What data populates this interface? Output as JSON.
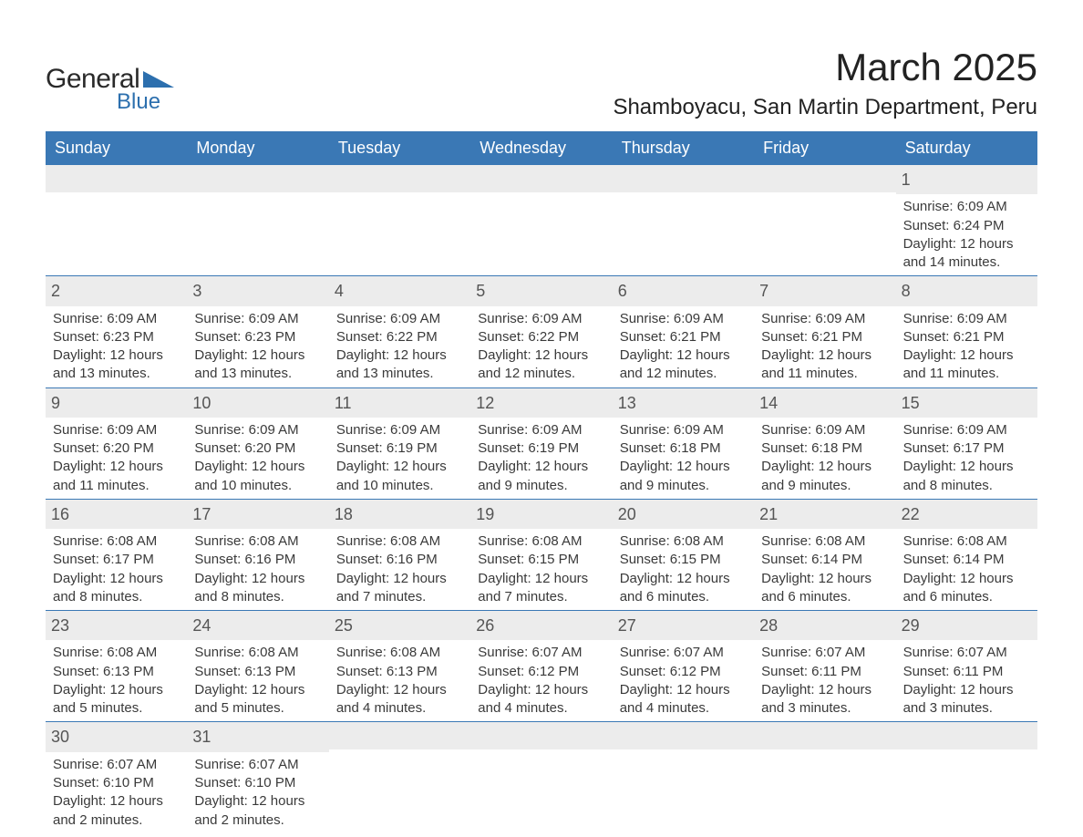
{
  "logo": {
    "text1": "General",
    "text2": "Blue",
    "tri_color": "#2c6fae"
  },
  "header": {
    "month_title": "March 2025",
    "location": "Shamboyacu, San Martin Department, Peru"
  },
  "colors": {
    "header_bg": "#3a78b5",
    "header_text": "#ffffff",
    "datenum_bg": "#ececec",
    "row_border": "#3a78b5",
    "text": "#3a3a3a",
    "logo_blue": "#2c6fae"
  },
  "daynames": [
    "Sunday",
    "Monday",
    "Tuesday",
    "Wednesday",
    "Thursday",
    "Friday",
    "Saturday"
  ],
  "weeks": [
    [
      {
        "empty": true
      },
      {
        "empty": true
      },
      {
        "empty": true
      },
      {
        "empty": true
      },
      {
        "empty": true
      },
      {
        "empty": true
      },
      {
        "date": "1",
        "sunrise": "Sunrise: 6:09 AM",
        "sunset": "Sunset: 6:24 PM",
        "daylight1": "Daylight: 12 hours",
        "daylight2": "and 14 minutes."
      }
    ],
    [
      {
        "date": "2",
        "sunrise": "Sunrise: 6:09 AM",
        "sunset": "Sunset: 6:23 PM",
        "daylight1": "Daylight: 12 hours",
        "daylight2": "and 13 minutes."
      },
      {
        "date": "3",
        "sunrise": "Sunrise: 6:09 AM",
        "sunset": "Sunset: 6:23 PM",
        "daylight1": "Daylight: 12 hours",
        "daylight2": "and 13 minutes."
      },
      {
        "date": "4",
        "sunrise": "Sunrise: 6:09 AM",
        "sunset": "Sunset: 6:22 PM",
        "daylight1": "Daylight: 12 hours",
        "daylight2": "and 13 minutes."
      },
      {
        "date": "5",
        "sunrise": "Sunrise: 6:09 AM",
        "sunset": "Sunset: 6:22 PM",
        "daylight1": "Daylight: 12 hours",
        "daylight2": "and 12 minutes."
      },
      {
        "date": "6",
        "sunrise": "Sunrise: 6:09 AM",
        "sunset": "Sunset: 6:21 PM",
        "daylight1": "Daylight: 12 hours",
        "daylight2": "and 12 minutes."
      },
      {
        "date": "7",
        "sunrise": "Sunrise: 6:09 AM",
        "sunset": "Sunset: 6:21 PM",
        "daylight1": "Daylight: 12 hours",
        "daylight2": "and 11 minutes."
      },
      {
        "date": "8",
        "sunrise": "Sunrise: 6:09 AM",
        "sunset": "Sunset: 6:21 PM",
        "daylight1": "Daylight: 12 hours",
        "daylight2": "and 11 minutes."
      }
    ],
    [
      {
        "date": "9",
        "sunrise": "Sunrise: 6:09 AM",
        "sunset": "Sunset: 6:20 PM",
        "daylight1": "Daylight: 12 hours",
        "daylight2": "and 11 minutes."
      },
      {
        "date": "10",
        "sunrise": "Sunrise: 6:09 AM",
        "sunset": "Sunset: 6:20 PM",
        "daylight1": "Daylight: 12 hours",
        "daylight2": "and 10 minutes."
      },
      {
        "date": "11",
        "sunrise": "Sunrise: 6:09 AM",
        "sunset": "Sunset: 6:19 PM",
        "daylight1": "Daylight: 12 hours",
        "daylight2": "and 10 minutes."
      },
      {
        "date": "12",
        "sunrise": "Sunrise: 6:09 AM",
        "sunset": "Sunset: 6:19 PM",
        "daylight1": "Daylight: 12 hours",
        "daylight2": "and 9 minutes."
      },
      {
        "date": "13",
        "sunrise": "Sunrise: 6:09 AM",
        "sunset": "Sunset: 6:18 PM",
        "daylight1": "Daylight: 12 hours",
        "daylight2": "and 9 minutes."
      },
      {
        "date": "14",
        "sunrise": "Sunrise: 6:09 AM",
        "sunset": "Sunset: 6:18 PM",
        "daylight1": "Daylight: 12 hours",
        "daylight2": "and 9 minutes."
      },
      {
        "date": "15",
        "sunrise": "Sunrise: 6:09 AM",
        "sunset": "Sunset: 6:17 PM",
        "daylight1": "Daylight: 12 hours",
        "daylight2": "and 8 minutes."
      }
    ],
    [
      {
        "date": "16",
        "sunrise": "Sunrise: 6:08 AM",
        "sunset": "Sunset: 6:17 PM",
        "daylight1": "Daylight: 12 hours",
        "daylight2": "and 8 minutes."
      },
      {
        "date": "17",
        "sunrise": "Sunrise: 6:08 AM",
        "sunset": "Sunset: 6:16 PM",
        "daylight1": "Daylight: 12 hours",
        "daylight2": "and 8 minutes."
      },
      {
        "date": "18",
        "sunrise": "Sunrise: 6:08 AM",
        "sunset": "Sunset: 6:16 PM",
        "daylight1": "Daylight: 12 hours",
        "daylight2": "and 7 minutes."
      },
      {
        "date": "19",
        "sunrise": "Sunrise: 6:08 AM",
        "sunset": "Sunset: 6:15 PM",
        "daylight1": "Daylight: 12 hours",
        "daylight2": "and 7 minutes."
      },
      {
        "date": "20",
        "sunrise": "Sunrise: 6:08 AM",
        "sunset": "Sunset: 6:15 PM",
        "daylight1": "Daylight: 12 hours",
        "daylight2": "and 6 minutes."
      },
      {
        "date": "21",
        "sunrise": "Sunrise: 6:08 AM",
        "sunset": "Sunset: 6:14 PM",
        "daylight1": "Daylight: 12 hours",
        "daylight2": "and 6 minutes."
      },
      {
        "date": "22",
        "sunrise": "Sunrise: 6:08 AM",
        "sunset": "Sunset: 6:14 PM",
        "daylight1": "Daylight: 12 hours",
        "daylight2": "and 6 minutes."
      }
    ],
    [
      {
        "date": "23",
        "sunrise": "Sunrise: 6:08 AM",
        "sunset": "Sunset: 6:13 PM",
        "daylight1": "Daylight: 12 hours",
        "daylight2": "and 5 minutes."
      },
      {
        "date": "24",
        "sunrise": "Sunrise: 6:08 AM",
        "sunset": "Sunset: 6:13 PM",
        "daylight1": "Daylight: 12 hours",
        "daylight2": "and 5 minutes."
      },
      {
        "date": "25",
        "sunrise": "Sunrise: 6:08 AM",
        "sunset": "Sunset: 6:13 PM",
        "daylight1": "Daylight: 12 hours",
        "daylight2": "and 4 minutes."
      },
      {
        "date": "26",
        "sunrise": "Sunrise: 6:07 AM",
        "sunset": "Sunset: 6:12 PM",
        "daylight1": "Daylight: 12 hours",
        "daylight2": "and 4 minutes."
      },
      {
        "date": "27",
        "sunrise": "Sunrise: 6:07 AM",
        "sunset": "Sunset: 6:12 PM",
        "daylight1": "Daylight: 12 hours",
        "daylight2": "and 4 minutes."
      },
      {
        "date": "28",
        "sunrise": "Sunrise: 6:07 AM",
        "sunset": "Sunset: 6:11 PM",
        "daylight1": "Daylight: 12 hours",
        "daylight2": "and 3 minutes."
      },
      {
        "date": "29",
        "sunrise": "Sunrise: 6:07 AM",
        "sunset": "Sunset: 6:11 PM",
        "daylight1": "Daylight: 12 hours",
        "daylight2": "and 3 minutes."
      }
    ],
    [
      {
        "date": "30",
        "sunrise": "Sunrise: 6:07 AM",
        "sunset": "Sunset: 6:10 PM",
        "daylight1": "Daylight: 12 hours",
        "daylight2": "and 2 minutes."
      },
      {
        "date": "31",
        "sunrise": "Sunrise: 6:07 AM",
        "sunset": "Sunset: 6:10 PM",
        "daylight1": "Daylight: 12 hours",
        "daylight2": "and 2 minutes."
      },
      {
        "empty": true
      },
      {
        "empty": true
      },
      {
        "empty": true
      },
      {
        "empty": true
      },
      {
        "empty": true
      }
    ]
  ]
}
